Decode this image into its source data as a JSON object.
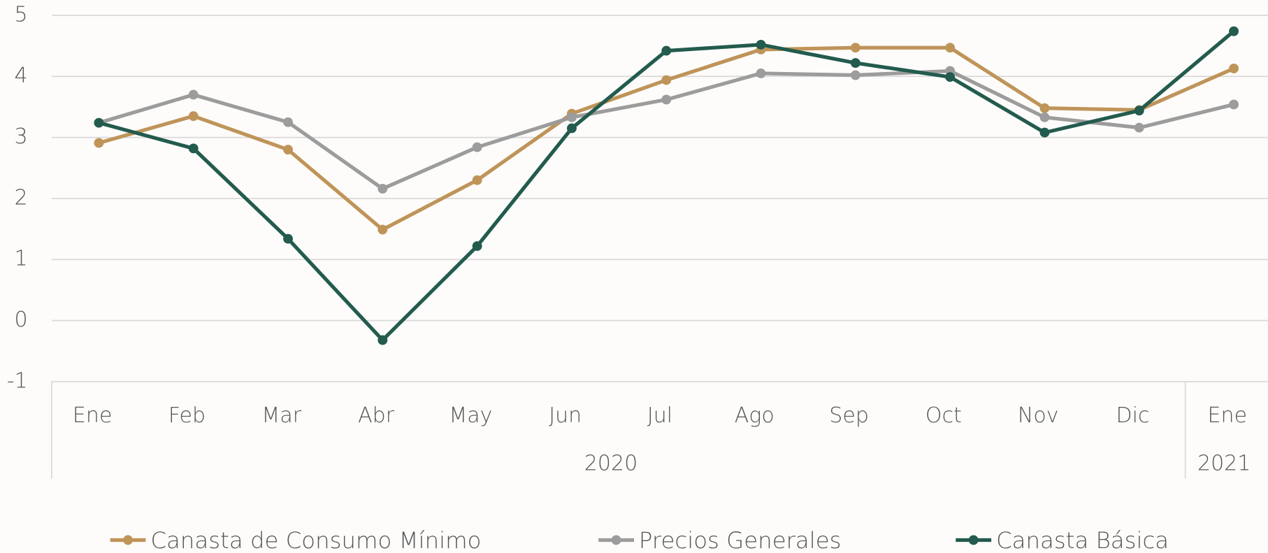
{
  "chart_data": {
    "type": "line",
    "categories": [
      "Ene",
      "Feb",
      "Mar",
      "Abr",
      "May",
      "Jun",
      "Jul",
      "Ago",
      "Sep",
      "Oct",
      "Nov",
      "Dic",
      "Ene"
    ],
    "groups": [
      {
        "label": "2020",
        "count": 12
      },
      {
        "label": "2021",
        "count": 1
      }
    ],
    "series": [
      {
        "name": "Canasta de Consumo Mínimo",
        "color": "#bf9459",
        "values": [
          2.91,
          3.35,
          2.8,
          1.49,
          2.3,
          3.39,
          3.94,
          4.44,
          4.47,
          4.47,
          3.48,
          3.45,
          4.13
        ]
      },
      {
        "name": "Precios Generales",
        "color": "#9d9c9c",
        "values": [
          3.24,
          3.7,
          3.25,
          2.16,
          2.84,
          3.33,
          3.62,
          4.05,
          4.02,
          4.09,
          3.33,
          3.16,
          3.54
        ]
      },
      {
        "name": "Canasta Básica",
        "color": "#235b4e",
        "values": [
          3.24,
          2.82,
          1.34,
          -0.32,
          1.22,
          3.15,
          4.42,
          4.52,
          4.22,
          3.99,
          3.08,
          3.44,
          4.74
        ]
      }
    ],
    "ylim": [
      -1,
      5
    ],
    "yticks": [
      -1,
      0,
      1,
      2,
      3,
      4,
      5
    ],
    "grid": true,
    "legend": "bottom"
  }
}
